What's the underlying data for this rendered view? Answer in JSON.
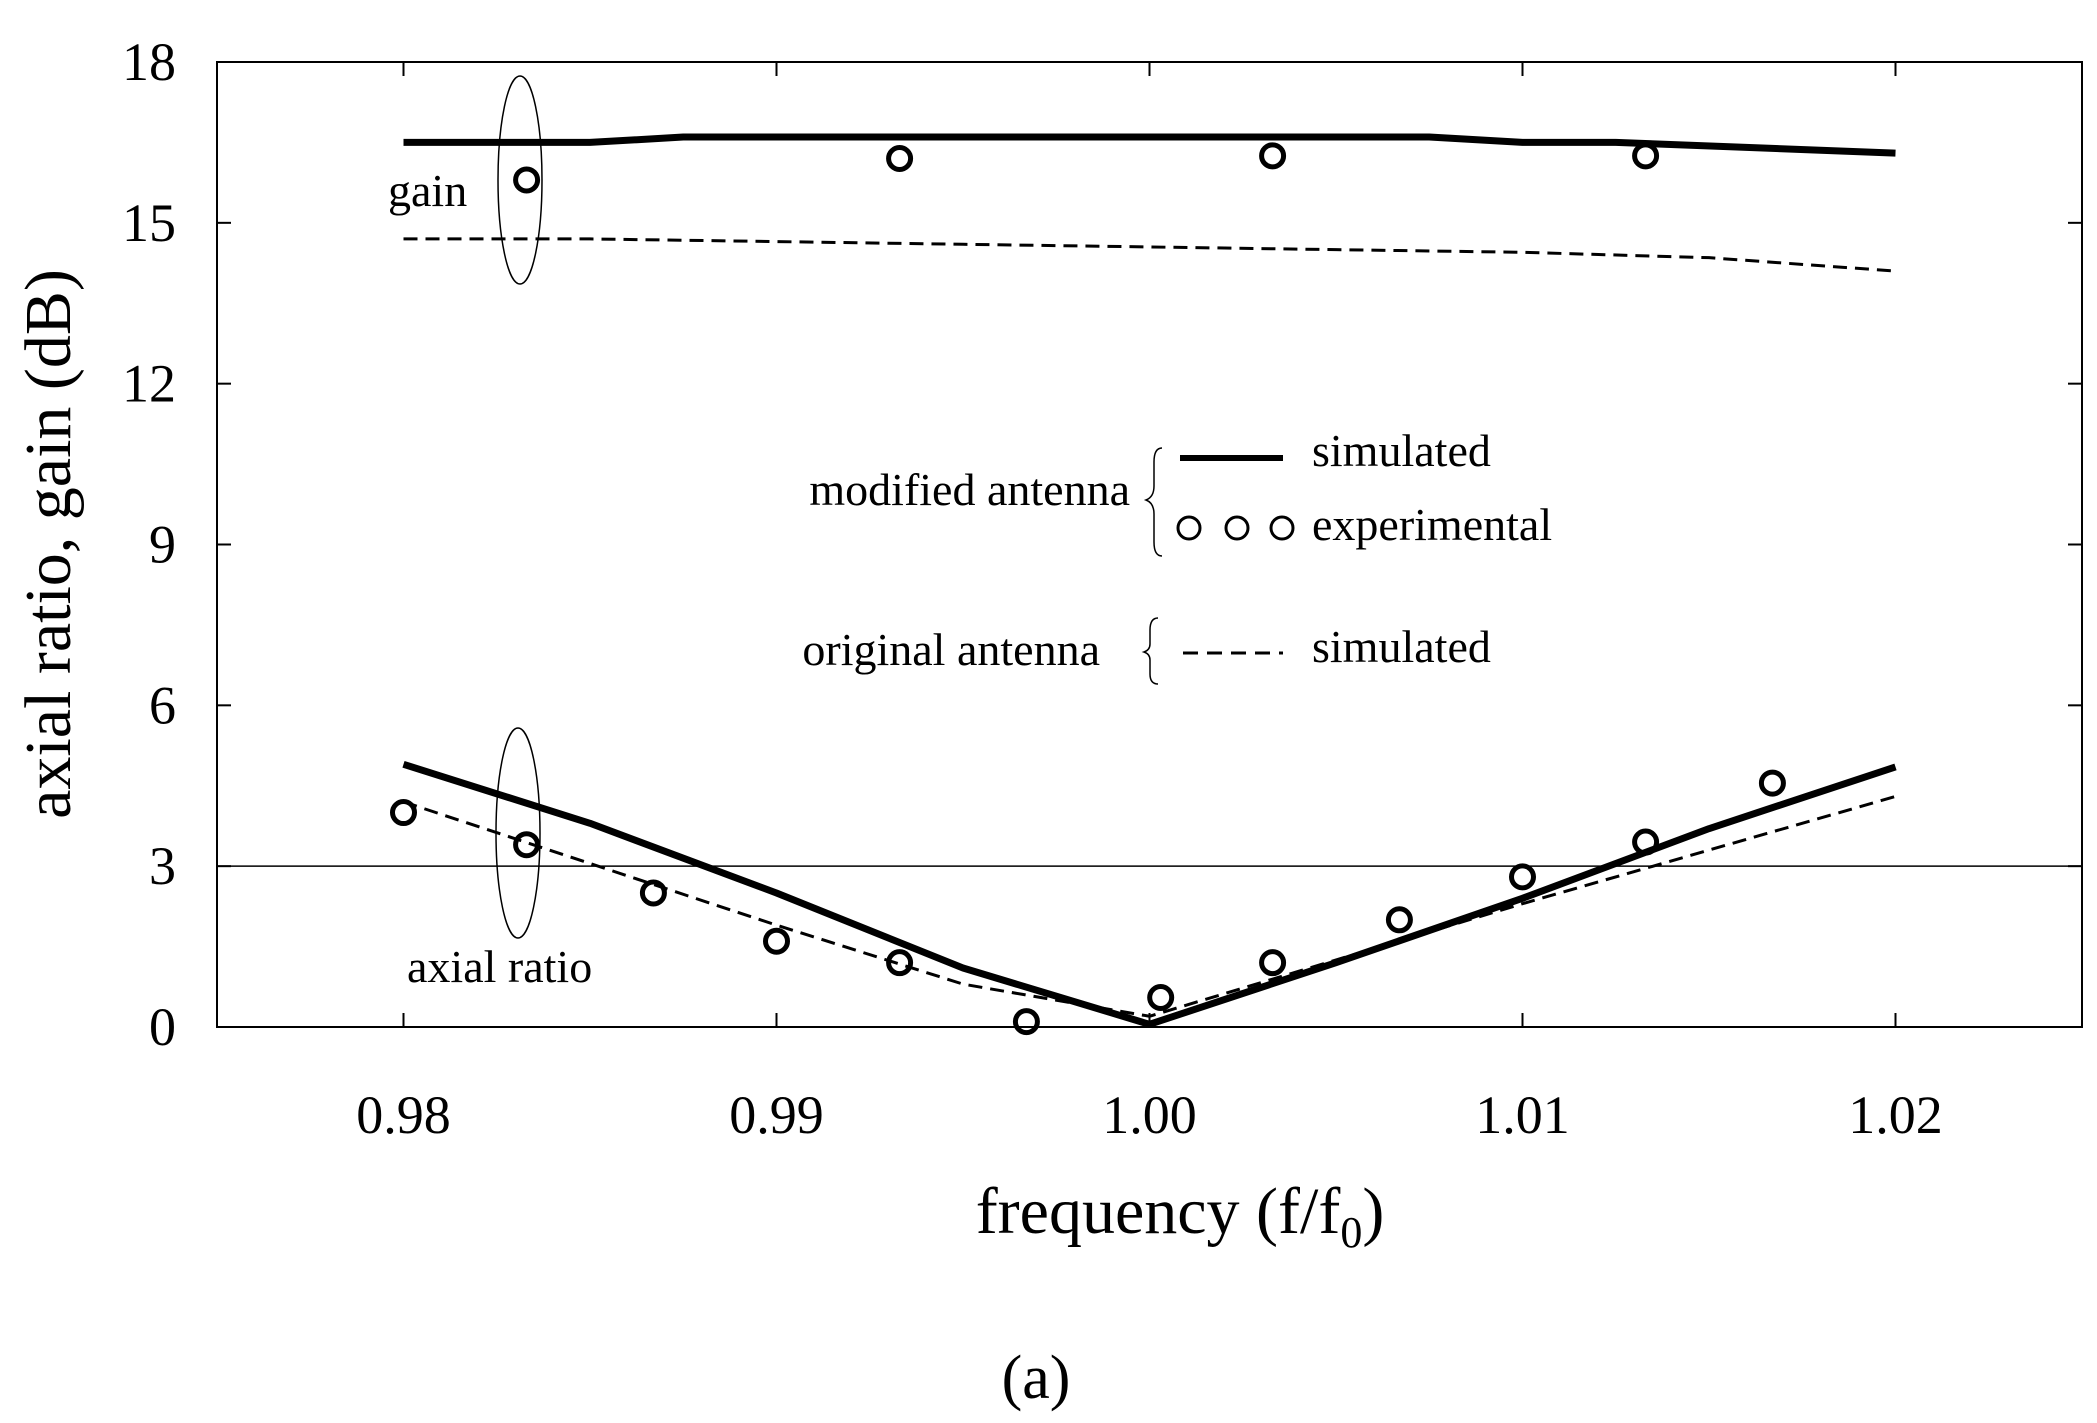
{
  "chart_data": {
    "type": "line",
    "xlabel": "frequency (f/f",
    "xlabel_sub": "0",
    "xlabel_close": ")",
    "ylabel": "axial ratio,  gain (dB)",
    "xlim": [
      0.975,
      1.025
    ],
    "ylim": [
      0,
      18
    ],
    "xticks": [
      0.98,
      0.99,
      1.0,
      1.01,
      1.02
    ],
    "xtick_labels": [
      "0.98",
      "0.99",
      "1.00",
      "1.01",
      "1.02"
    ],
    "yticks": [
      0,
      3,
      6,
      9,
      12,
      15,
      18
    ],
    "ytick_labels": [
      "0",
      "3",
      "6",
      "9",
      "12",
      "15",
      "18"
    ],
    "reference_line_y": 3,
    "grid": false,
    "panel_label": "(a)",
    "annotations": [
      "gain",
      "axial ratio"
    ],
    "legend": {
      "placement": "center-right",
      "groups": [
        {
          "label": "modified antenna",
          "entries": [
            {
              "style": "solid",
              "label": "simulated"
            },
            {
              "style": "markers",
              "label": "experimental"
            }
          ]
        },
        {
          "label": "original antenna",
          "entries": [
            {
              "style": "dashed",
              "label": "simulated"
            }
          ]
        }
      ]
    },
    "series": [
      {
        "group": "gain",
        "antenna": "modified antenna",
        "kind": "simulated",
        "style": "solid",
        "x": [
          0.98,
          0.985,
          0.9875,
          0.995,
          1.0,
          1.0075,
          1.01,
          1.0125,
          1.02
        ],
        "y": [
          16.5,
          16.5,
          16.6,
          16.6,
          16.6,
          16.6,
          16.5,
          16.5,
          16.3
        ]
      },
      {
        "group": "gain",
        "antenna": "original antenna",
        "kind": "simulated",
        "style": "dashed",
        "x": [
          0.98,
          0.985,
          0.99,
          0.995,
          1.0,
          1.005,
          1.01,
          1.015,
          1.02
        ],
        "y": [
          14.7,
          14.7,
          14.65,
          14.6,
          14.55,
          14.5,
          14.45,
          14.35,
          14.1
        ]
      },
      {
        "group": "gain",
        "antenna": "modified antenna",
        "kind": "experimental",
        "style": "markers",
        "x": [
          0.9833,
          0.9933,
          1.0033,
          1.0133
        ],
        "y": [
          15.8,
          16.2,
          16.25,
          16.25
        ]
      },
      {
        "group": "axial ratio",
        "antenna": "modified antenna",
        "kind": "simulated",
        "style": "solid",
        "x": [
          0.98,
          0.985,
          0.99,
          0.995,
          1.0,
          1.005,
          1.01,
          1.015,
          1.02
        ],
        "y": [
          4.9,
          3.8,
          2.5,
          1.1,
          0.05,
          1.2,
          2.4,
          3.7,
          4.85
        ]
      },
      {
        "group": "axial ratio",
        "antenna": "original antenna",
        "kind": "simulated",
        "style": "dashed",
        "x": [
          0.98,
          0.99,
          0.995,
          1.0,
          1.01,
          1.02
        ],
        "y": [
          4.2,
          1.9,
          0.8,
          0.2,
          2.3,
          4.3
        ]
      },
      {
        "group": "axial ratio",
        "antenna": "modified antenna",
        "kind": "experimental",
        "style": "markers",
        "x": [
          0.98,
          0.9833,
          0.9867,
          0.99,
          0.9933,
          0.9967,
          1.0003,
          1.0033,
          1.0067,
          1.01,
          1.0133,
          1.0167
        ],
        "y": [
          4.0,
          3.4,
          2.5,
          1.6,
          1.2,
          0.1,
          0.55,
          1.2,
          2.0,
          2.8,
          3.45,
          4.55
        ]
      }
    ]
  }
}
